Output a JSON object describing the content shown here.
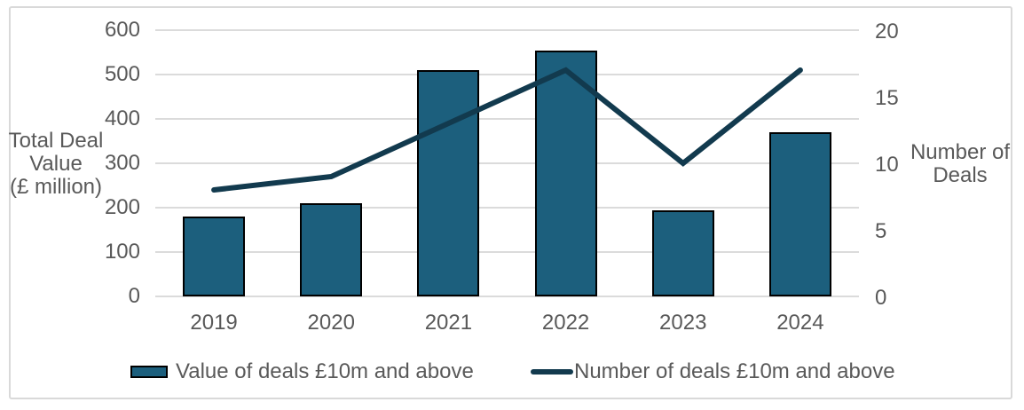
{
  "chart_data": {
    "type": "bar+line",
    "categories": [
      "2019",
      "2020",
      "2021",
      "2022",
      "2023",
      "2024"
    ],
    "series": [
      {
        "name": "Value of deals £10m and above",
        "type": "bar",
        "axis": "left",
        "values": [
          180,
          210,
          510,
          555,
          195,
          370
        ],
        "color": "#1C5F7D"
      },
      {
        "name": "Number of deals £10m and above",
        "type": "line",
        "axis": "right",
        "values": [
          8,
          9,
          13,
          17,
          10,
          17
        ],
        "color": "#123A4E"
      }
    ],
    "left_axis": {
      "title": "Total Deal\nValue\n(£ million)",
      "ticks": [
        0,
        100,
        200,
        300,
        400,
        500,
        600
      ],
      "range": [
        0,
        600
      ]
    },
    "right_axis": {
      "title": "Number of\nDeals",
      "ticks": [
        0,
        5,
        10,
        15,
        20
      ],
      "range": [
        0,
        20
      ]
    },
    "grid": true,
    "legend_position": "bottom"
  },
  "colors": {
    "text": "#595959",
    "gridline": "#DBDBDB",
    "frame_border": "#D9D9D9",
    "bar_border": "#000000",
    "background": "#FFFFFF"
  }
}
